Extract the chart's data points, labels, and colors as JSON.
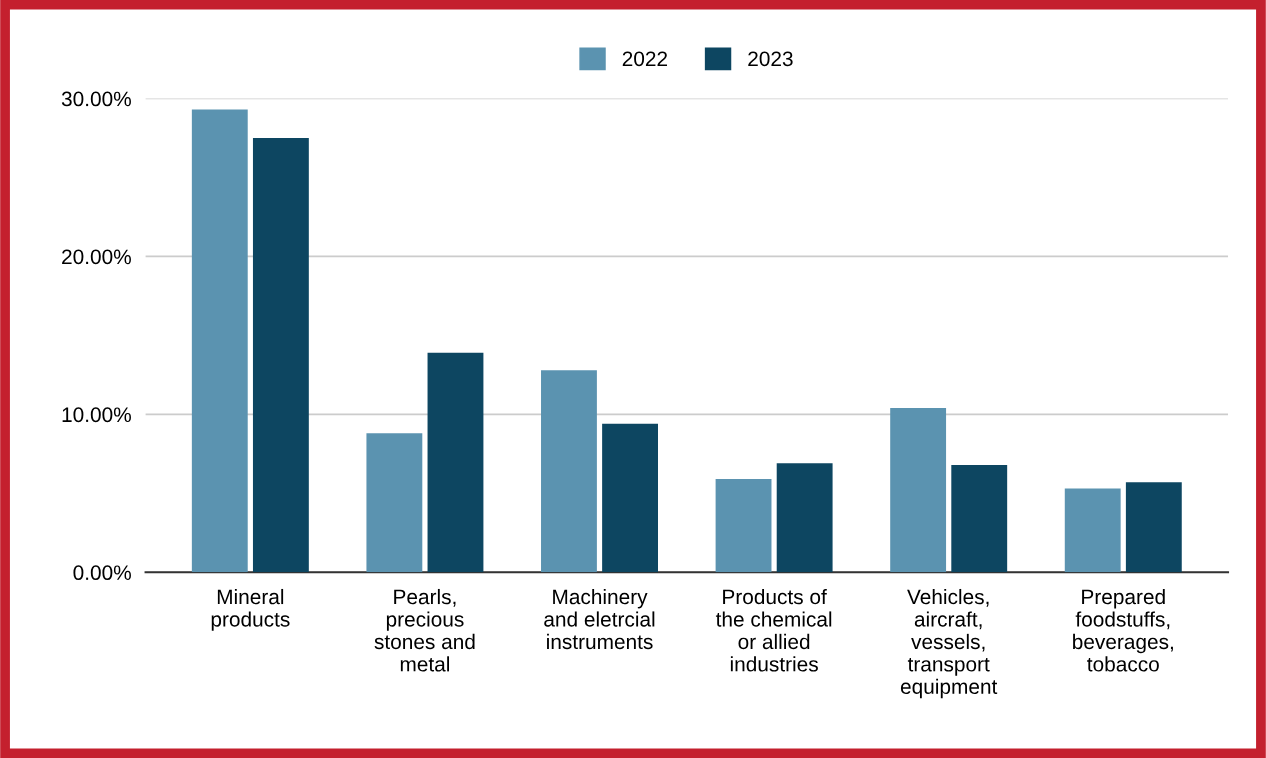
{
  "chart_data": {
    "type": "bar",
    "categories": [
      "Mineral\nproducts",
      "Pearls,\nprecious\nstones and\nmetal",
      "Machinery\nand eletrcial\ninstruments",
      "Products of\nthe chemical\nor allied\nindustries",
      "Vehicles,\naircraft,\nvessels,\ntransport\nequipment",
      "Prepared\nfoodstuffs,\nbeverages,\ntobacco"
    ],
    "series": [
      {
        "name": "2022",
        "color": "#5b93b0",
        "values": [
          29.3,
          8.8,
          12.8,
          5.9,
          10.4,
          5.3
        ]
      },
      {
        "name": "2023",
        "color": "#0d4661",
        "values": [
          27.5,
          13.9,
          9.4,
          6.9,
          6.8,
          5.7
        ]
      }
    ],
    "ylim": [
      0,
      30
    ],
    "yticks": [
      {
        "value": 0,
        "label": "0.00%"
      },
      {
        "value": 10,
        "label": "10.00%"
      },
      {
        "value": 20,
        "label": "20.00%"
      },
      {
        "value": 30,
        "label": "30.00%"
      }
    ],
    "grid": "y",
    "legend": "top"
  }
}
